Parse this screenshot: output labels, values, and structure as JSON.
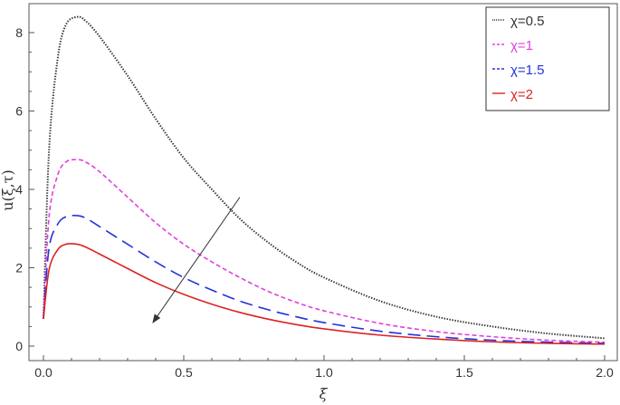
{
  "chart_data": {
    "type": "line",
    "title": "",
    "xlabel": "ξ",
    "ylabel": "u(ξ,τ)",
    "xlim": [
      0,
      2.0
    ],
    "ylim": [
      -0.4,
      8.8
    ],
    "x_ticks": [
      "0.0",
      "0.5",
      "1.0",
      "1.5",
      "2.0"
    ],
    "y_ticks": [
      "0",
      "2",
      "4",
      "6",
      "8"
    ],
    "grid": false,
    "legend_position": "top-right",
    "series": [
      {
        "name": "χ=0.5",
        "color": "#333333",
        "dash": "dotted",
        "x": [
          0.0,
          0.02,
          0.05,
          0.08,
          0.12,
          0.15,
          0.2,
          0.3,
          0.4,
          0.5,
          0.6,
          0.7,
          0.8,
          0.9,
          1.0,
          1.2,
          1.4,
          1.6,
          1.8,
          2.0
        ],
        "y": [
          0.7,
          5.0,
          7.3,
          8.2,
          8.4,
          8.3,
          7.9,
          6.9,
          5.8,
          4.8,
          4.0,
          3.25,
          2.65,
          2.15,
          1.75,
          1.15,
          0.75,
          0.5,
          0.32,
          0.2
        ]
      },
      {
        "name": "χ=1",
        "color": "#e040e0",
        "dash": "short-dashed",
        "x": [
          0.0,
          0.02,
          0.05,
          0.08,
          0.12,
          0.15,
          0.2,
          0.3,
          0.4,
          0.5,
          0.6,
          0.7,
          0.8,
          0.9,
          1.0,
          1.2,
          1.4,
          1.6,
          1.8,
          2.0
        ],
        "y": [
          0.7,
          3.3,
          4.35,
          4.7,
          4.76,
          4.7,
          4.45,
          3.8,
          3.15,
          2.6,
          2.15,
          1.75,
          1.4,
          1.12,
          0.9,
          0.58,
          0.37,
          0.24,
          0.15,
          0.1
        ]
      },
      {
        "name": "χ=1.5",
        "color": "#2233dd",
        "dash": "long-dashed",
        "x": [
          0.0,
          0.02,
          0.05,
          0.08,
          0.12,
          0.15,
          0.2,
          0.3,
          0.4,
          0.5,
          0.6,
          0.7,
          0.8,
          0.9,
          1.0,
          1.2,
          1.4,
          1.6,
          1.8,
          2.0
        ],
        "y": [
          0.7,
          2.5,
          3.1,
          3.3,
          3.33,
          3.27,
          3.05,
          2.6,
          2.15,
          1.75,
          1.43,
          1.15,
          0.93,
          0.75,
          0.6,
          0.38,
          0.24,
          0.15,
          0.1,
          0.07
        ]
      },
      {
        "name": "χ=2",
        "color": "#dd2222",
        "dash": "solid",
        "x": [
          0.0,
          0.02,
          0.05,
          0.08,
          0.12,
          0.15,
          0.2,
          0.3,
          0.4,
          0.5,
          0.6,
          0.7,
          0.8,
          0.9,
          1.0,
          1.2,
          1.4,
          1.6,
          1.8,
          2.0
        ],
        "y": [
          0.7,
          1.95,
          2.45,
          2.6,
          2.6,
          2.53,
          2.35,
          1.98,
          1.62,
          1.32,
          1.07,
          0.86,
          0.69,
          0.55,
          0.44,
          0.28,
          0.18,
          0.11,
          0.07,
          0.05
        ]
      }
    ],
    "annotations": [
      {
        "type": "arrow",
        "from": [
          0.7,
          3.8
        ],
        "to": [
          0.39,
          0.6
        ],
        "color": "#333333",
        "meaning": "increasing χ"
      }
    ]
  }
}
